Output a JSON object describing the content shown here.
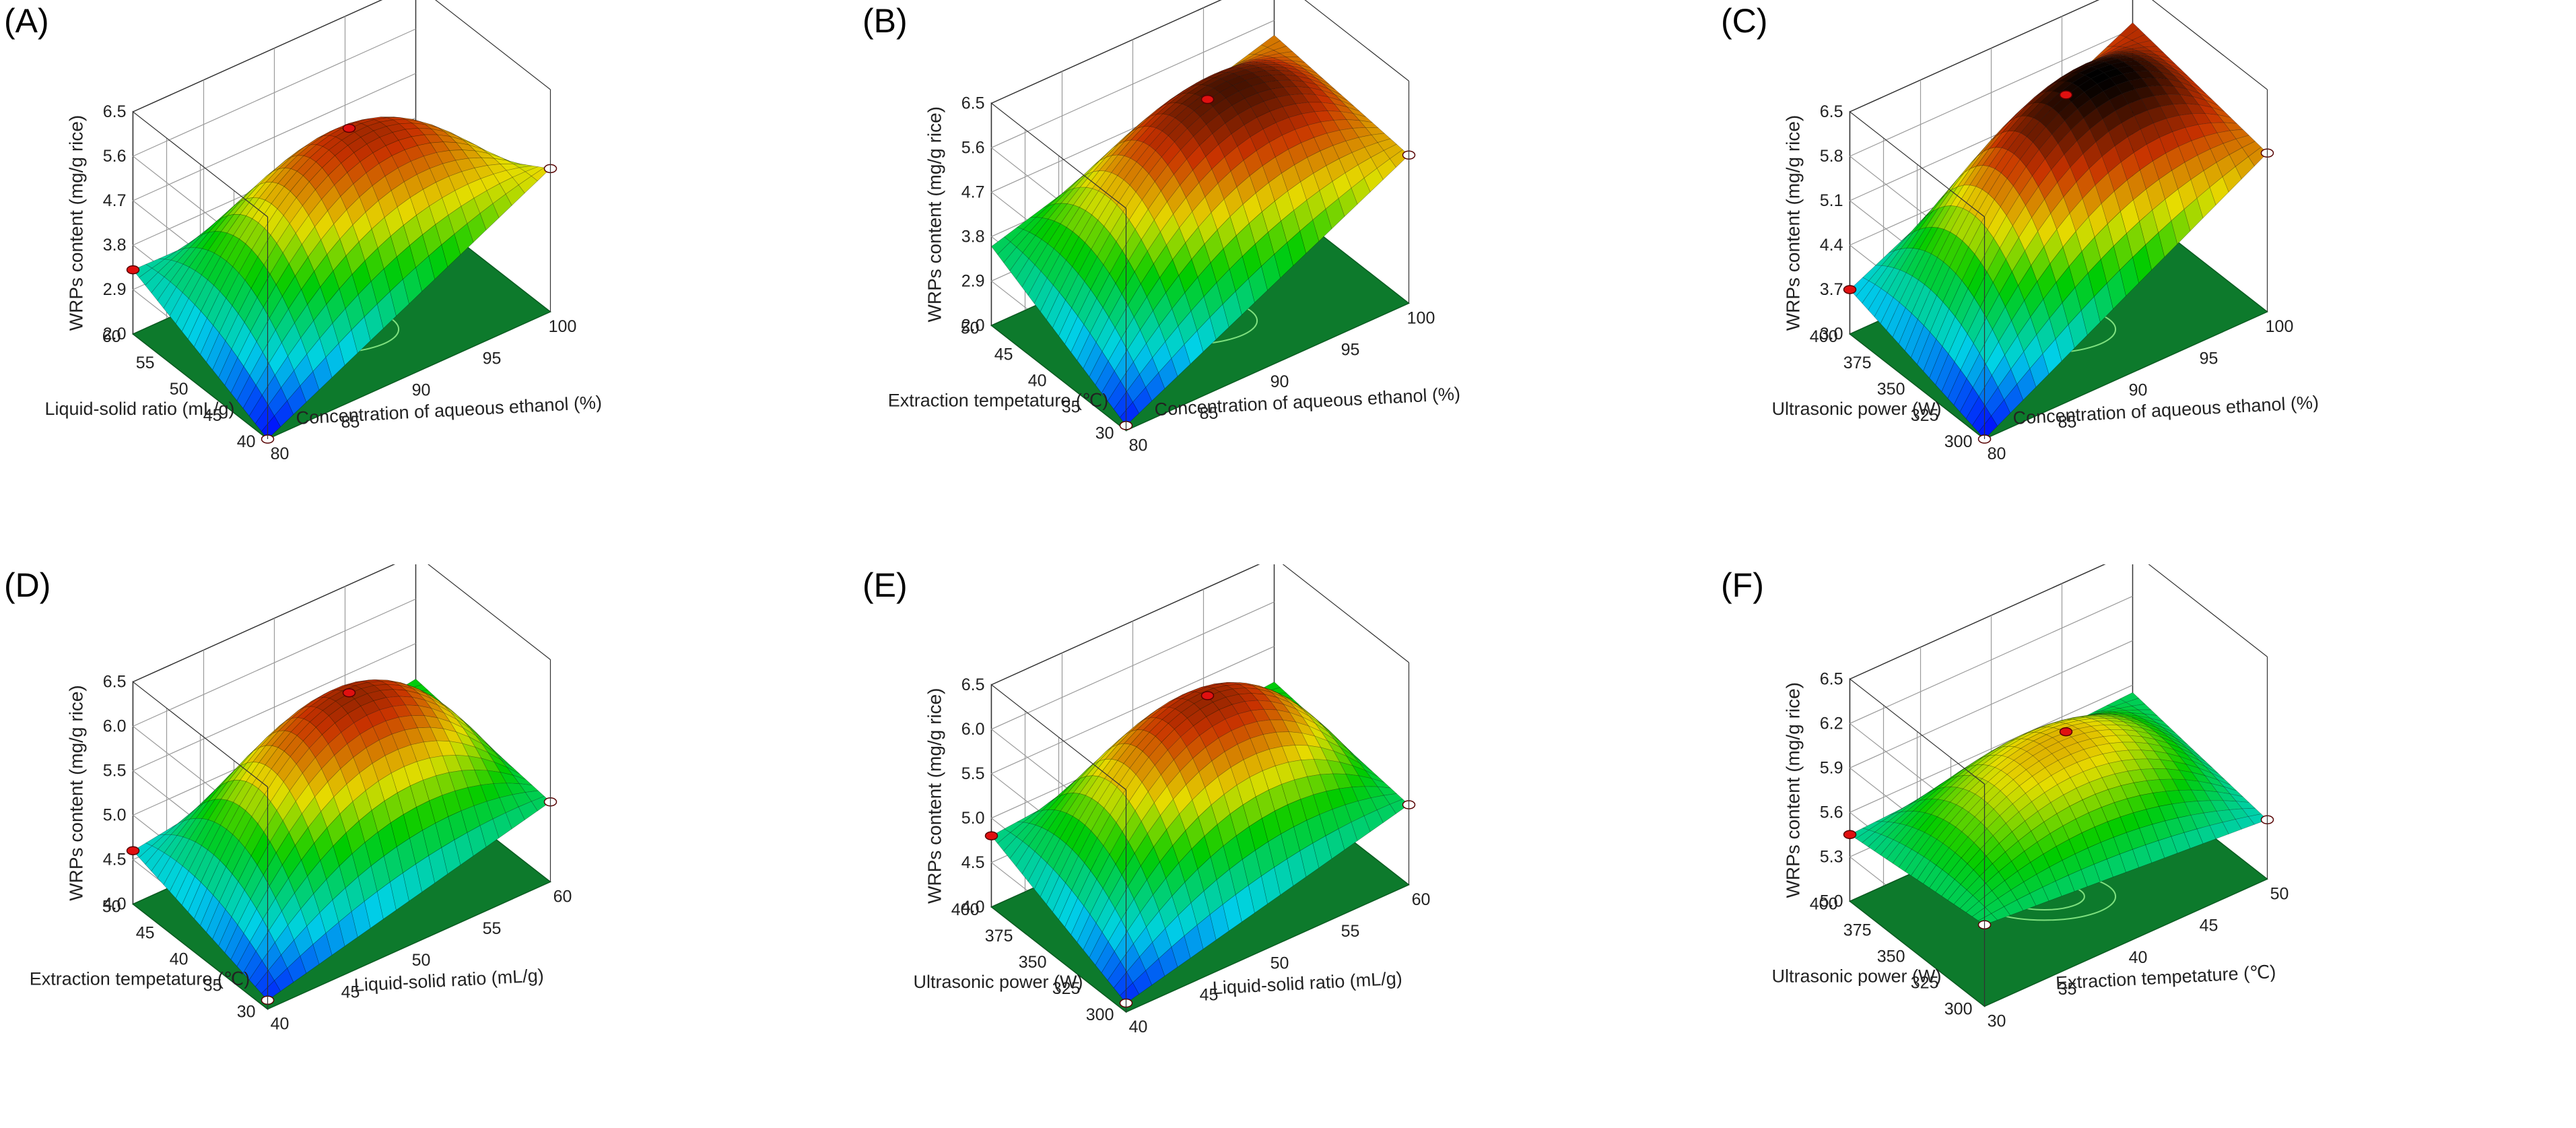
{
  "figure": {
    "colors": {
      "floor": "#0d7a2c",
      "floor_contour": "#7fe07f",
      "gridline": "#9a9a9a",
      "frame": "#333333",
      "point_high": "#e01010",
      "point_low": "#ffffff",
      "surface_low": "#0000ff",
      "surface_mid": "#00cc00",
      "surface_high": "#c83200",
      "surface_top": "#000000"
    }
  },
  "chart_data": [
    {
      "panel_label": "(A)",
      "type": "surface3d",
      "zlabel": "WRPs content (mg/g rice)",
      "z_ticks": [
        "2.0",
        "2.9",
        "3.8",
        "4.7",
        "5.6",
        "6.5"
      ],
      "zlim": [
        2.0,
        6.5
      ],
      "xlabel": "Concentration of aqueous ethanol (%)",
      "x_ticks": [
        "80",
        "85",
        "90",
        "95",
        "100"
      ],
      "xlim": [
        80,
        100
      ],
      "ylabel": "Liquid-solid ratio (mL/g)",
      "y_ticks": [
        "40",
        "45",
        "50",
        "55",
        "60"
      ],
      "ylim": [
        40,
        60
      ],
      "surface_corners": {
        "x0y0": 2.0,
        "x1y0": 4.9,
        "x0y1": 3.3,
        "x1y1": 3.2
      },
      "surface_peak": 5.7,
      "design_points": [
        "front",
        "right",
        "left",
        "peak"
      ]
    },
    {
      "panel_label": "(B)",
      "type": "surface3d",
      "zlabel": "WRPs content (mg/g rice)",
      "z_ticks": [
        "2.0",
        "2.9",
        "3.8",
        "4.7",
        "5.6",
        "6.5"
      ],
      "zlim": [
        2.0,
        6.5
      ],
      "xlabel": "Concentration of aqueous ethanol (%)",
      "x_ticks": [
        "80",
        "85",
        "90",
        "95",
        "100"
      ],
      "xlim": [
        80,
        100
      ],
      "ylabel": "Extraction tempetature (℃)",
      "y_ticks": [
        "30",
        "35",
        "40",
        "45",
        "50"
      ],
      "ylim": [
        30,
        50
      ],
      "surface_corners": {
        "x0y0": 2.1,
        "x1y0": 5.0,
        "x0y1": 3.6,
        "x1y1": 5.3
      },
      "surface_peak": 6.0,
      "design_points": [
        "front",
        "right",
        "peak"
      ]
    },
    {
      "panel_label": "(C)",
      "type": "surface3d",
      "zlabel": "WRPs content (mg/g rice)",
      "z_ticks": [
        "3.0",
        "3.7",
        "4.4",
        "5.1",
        "5.8",
        "6.5"
      ],
      "zlim": [
        3.0,
        6.5
      ],
      "xlabel": "Concentration of aqueous ethanol (%)",
      "x_ticks": [
        "80",
        "85",
        "90",
        "95",
        "100"
      ],
      "xlim": [
        80,
        100
      ],
      "ylabel": "Ultrasonic power (W)",
      "y_ticks": [
        "300",
        "325",
        "350",
        "375",
        "400"
      ],
      "ylim": [
        300,
        400
      ],
      "surface_corners": {
        "x0y0": 3.0,
        "x1y0": 5.5,
        "x0y1": 3.7,
        "x1y1": 5.9
      },
      "surface_peak": 6.3,
      "design_points": [
        "front",
        "right",
        "left",
        "peak"
      ]
    },
    {
      "panel_label": "(D)",
      "type": "surface3d",
      "zlabel": "WRPs content (mg/g rice)",
      "z_ticks": [
        "4.0",
        "4.5",
        "5.0",
        "5.5",
        "6.0",
        "6.5"
      ],
      "zlim": [
        4.0,
        6.5
      ],
      "xlabel": "Liquid-solid ratio (mL/g)",
      "x_ticks": [
        "40",
        "45",
        "50",
        "55",
        "60"
      ],
      "xlim": [
        40,
        60
      ],
      "ylabel": "Extraction tempetature (℃)",
      "y_ticks": [
        "30",
        "35",
        "40",
        "45",
        "50"
      ],
      "ylim": [
        30,
        50
      ],
      "surface_corners": {
        "x0y0": 4.1,
        "x1y0": 4.9,
        "x0y1": 4.6,
        "x1y1": 5.1
      },
      "surface_peak": 6.1,
      "design_points": [
        "front",
        "right",
        "left",
        "peak"
      ]
    },
    {
      "panel_label": "(E)",
      "type": "surface3d",
      "zlabel": "WRPs content (mg/g rice)",
      "z_ticks": [
        "4.0",
        "4.5",
        "5.0",
        "5.5",
        "6.0",
        "6.5"
      ],
      "zlim": [
        4.0,
        6.5
      ],
      "xlabel": "Liquid-solid ratio (mL/g)",
      "x_ticks": [
        "40",
        "45",
        "50",
        "55",
        "60"
      ],
      "xlim": [
        40,
        60
      ],
      "ylabel": "Ultrasonic power (W)",
      "y_ticks": [
        "300",
        "325",
        "350",
        "375",
        "400"
      ],
      "ylim": [
        300,
        400
      ],
      "surface_corners": {
        "x0y0": 4.1,
        "x1y0": 4.9,
        "x0y1": 4.8,
        "x1y1": 5.1
      },
      "surface_peak": 6.1,
      "design_points": [
        "front",
        "right",
        "left",
        "peak"
      ]
    },
    {
      "panel_label": "(F)",
      "type": "surface3d",
      "zlabel": "WRPs content (mg/g rice)",
      "z_ticks": [
        "5.0",
        "5.3",
        "5.6",
        "5.9",
        "6.2",
        "6.5"
      ],
      "zlim": [
        5.0,
        6.5
      ],
      "xlabel": "Extraction tempetature (℃)",
      "x_ticks": [
        "30",
        "35",
        "40",
        "45",
        "50"
      ],
      "xlim": [
        30,
        50
      ],
      "ylabel": "Ultrasonic power (W)",
      "y_ticks": [
        "300",
        "325",
        "350",
        "375",
        "400"
      ],
      "ylim": [
        300,
        400
      ],
      "surface_corners": {
        "x0y0": 5.55,
        "x1y0": 5.4,
        "x0y1": 5.45,
        "x1y1": 5.55
      },
      "surface_peak": 6.0,
      "design_points": [
        "front",
        "right",
        "left",
        "peak"
      ]
    }
  ]
}
